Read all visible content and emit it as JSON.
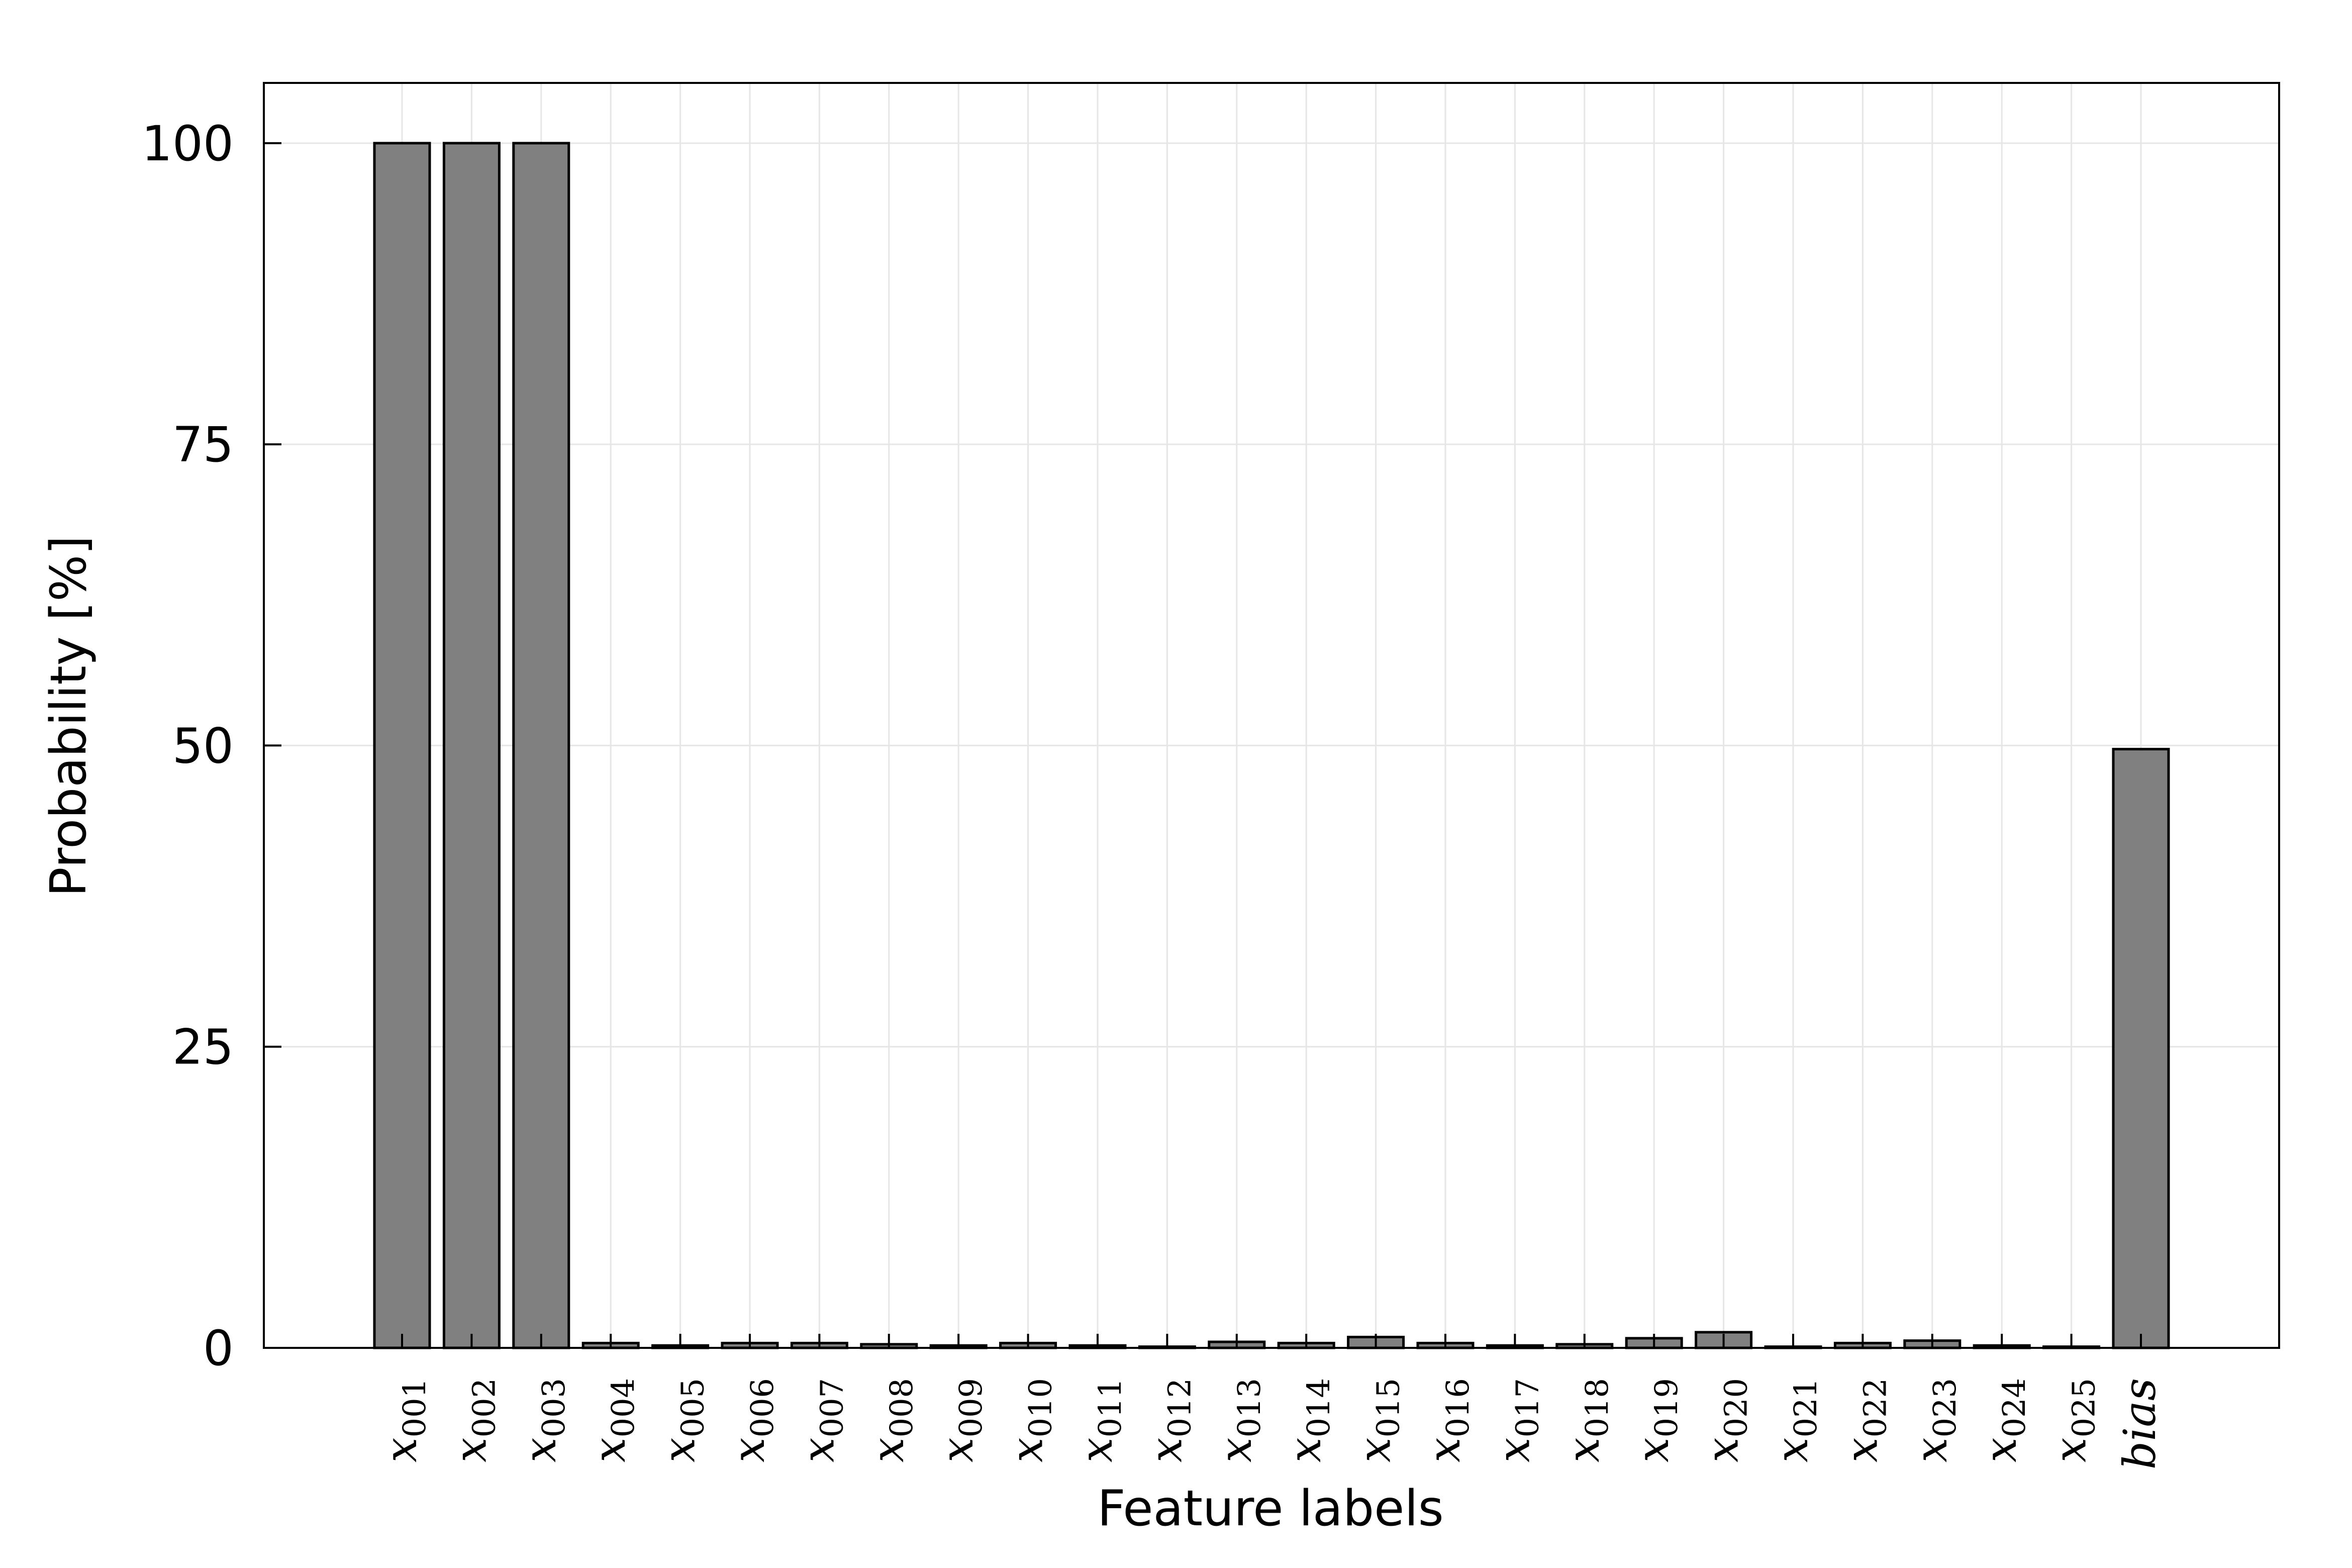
{
  "chart_data": {
    "type": "bar",
    "xlabel": "Feature labels",
    "ylabel": "Probability [%]",
    "ylim": [
      0,
      105
    ],
    "yticks": [
      0,
      25,
      50,
      75,
      100
    ],
    "grid": true,
    "legend": "none",
    "bar_color": "#808080",
    "categories": [
      {
        "base": "x",
        "sub": "001"
      },
      {
        "base": "x",
        "sub": "002"
      },
      {
        "base": "x",
        "sub": "003"
      },
      {
        "base": "x",
        "sub": "004"
      },
      {
        "base": "x",
        "sub": "005"
      },
      {
        "base": "x",
        "sub": "006"
      },
      {
        "base": "x",
        "sub": "007"
      },
      {
        "base": "x",
        "sub": "008"
      },
      {
        "base": "x",
        "sub": "009"
      },
      {
        "base": "x",
        "sub": "010"
      },
      {
        "base": "x",
        "sub": "011"
      },
      {
        "base": "x",
        "sub": "012"
      },
      {
        "base": "x",
        "sub": "013"
      },
      {
        "base": "x",
        "sub": "014"
      },
      {
        "base": "x",
        "sub": "015"
      },
      {
        "base": "x",
        "sub": "016"
      },
      {
        "base": "x",
        "sub": "017"
      },
      {
        "base": "x",
        "sub": "018"
      },
      {
        "base": "x",
        "sub": "019"
      },
      {
        "base": "x",
        "sub": "020"
      },
      {
        "base": "x",
        "sub": "021"
      },
      {
        "base": "x",
        "sub": "022"
      },
      {
        "base": "x",
        "sub": "023"
      },
      {
        "base": "x",
        "sub": "024"
      },
      {
        "base": "x",
        "sub": "025"
      },
      {
        "base": "bias",
        "sub": ""
      }
    ],
    "values": [
      100,
      100,
      100,
      0.4,
      0.2,
      0.4,
      0.4,
      0.3,
      0.2,
      0.4,
      0.2,
      0.1,
      0.5,
      0.4,
      0.9,
      0.4,
      0.2,
      0.3,
      0.8,
      1.3,
      0.1,
      0.4,
      0.6,
      0.2,
      0.1,
      49.7
    ]
  }
}
